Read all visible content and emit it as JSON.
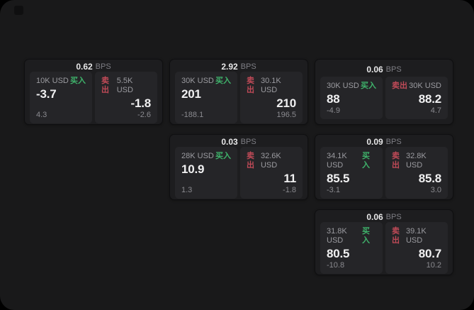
{
  "labels": {
    "bps": "BPS",
    "buy": "买入",
    "sell": "卖出"
  },
  "colors": {
    "window_bg": "#19191a",
    "card_bg": "#1d1d1f",
    "panel_bg": "#252528",
    "buy_accent": "#3fb36b",
    "sell_accent": "#c04a57"
  },
  "cards": [
    {
      "bps": "0.62",
      "buy": {
        "amount": "10K USD",
        "value": "-3.7",
        "sub": "4.3"
      },
      "sell": {
        "amount": "5.5K USD",
        "value": "-1.8",
        "sub": "-2.6"
      }
    },
    {
      "bps": "2.92",
      "buy": {
        "amount": "30K USD",
        "value": "201",
        "sub": "-188.1"
      },
      "sell": {
        "amount": "30.1K USD",
        "value": "210",
        "sub": "196.5"
      }
    },
    {
      "bps": "0.06",
      "buy": {
        "amount": "30K USD",
        "value": "88",
        "sub": "-4.9"
      },
      "sell": {
        "amount": "30K USD",
        "value": "88.2",
        "sub": "4.7"
      }
    },
    {
      "bps": "0.03",
      "buy": {
        "amount": "28K USD",
        "value": "10.9",
        "sub": "1.3"
      },
      "sell": {
        "amount": "32.6K USD",
        "value": "11",
        "sub": "-1.8"
      }
    },
    {
      "bps": "0.09",
      "buy": {
        "amount": "34.1K USD",
        "value": "85.5",
        "sub": "-3.1"
      },
      "sell": {
        "amount": "32.8K USD",
        "value": "85.8",
        "sub": "3.0"
      }
    },
    {
      "bps": "0.06",
      "buy": {
        "amount": "31.8K USD",
        "value": "80.5",
        "sub": "-10.8"
      },
      "sell": {
        "amount": "39.1K USD",
        "value": "80.7",
        "sub": "10.2"
      }
    }
  ]
}
